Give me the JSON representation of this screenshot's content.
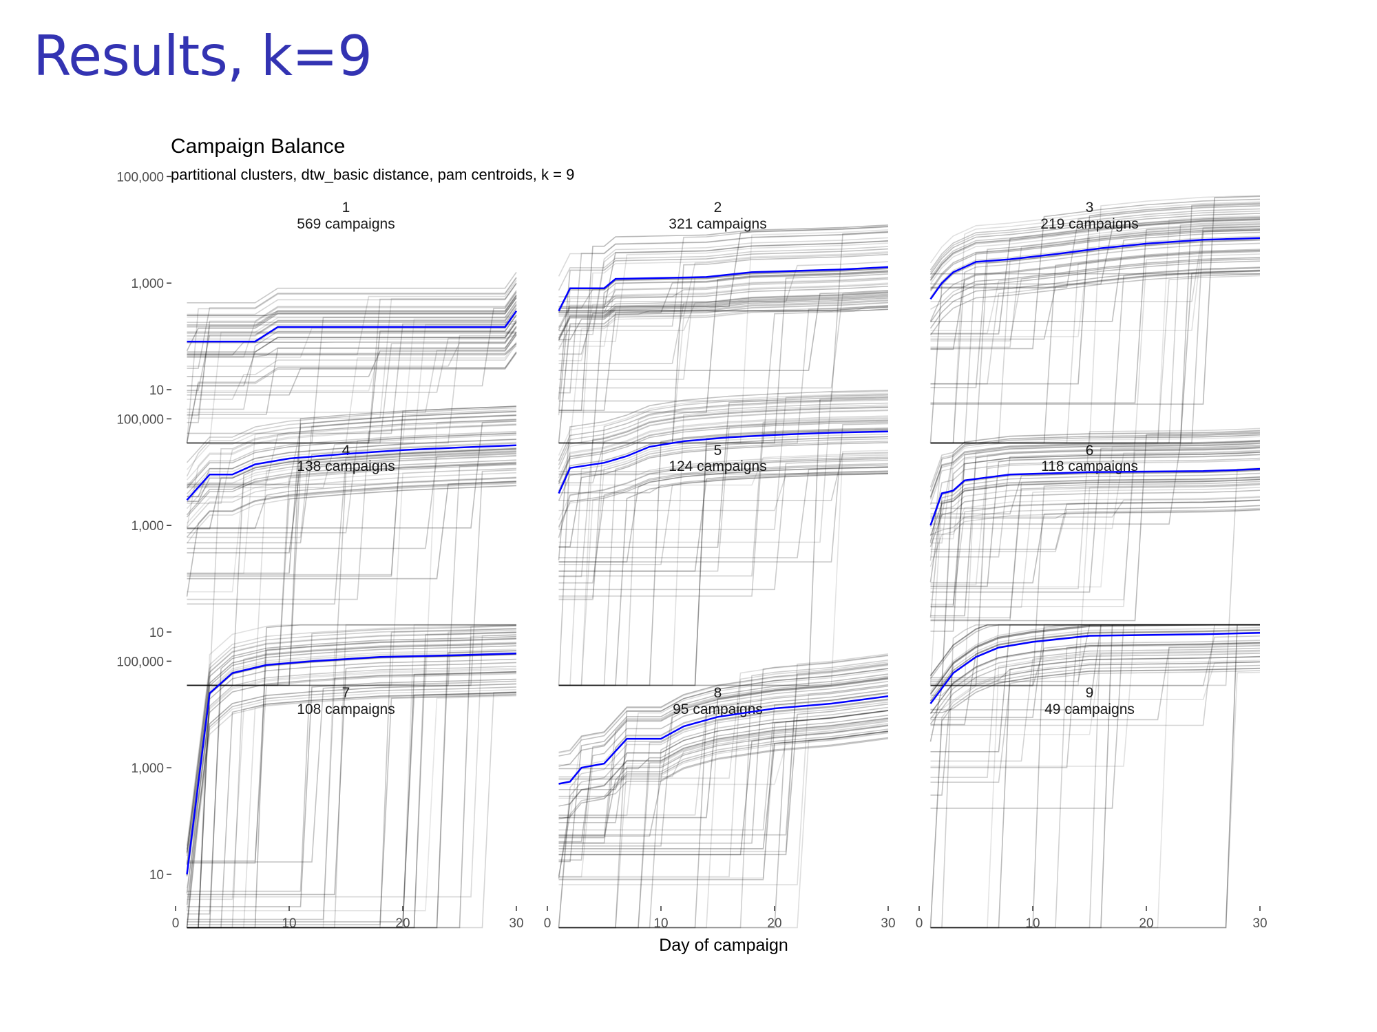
{
  "slide": {
    "title": "Results, k=9"
  },
  "colors": {
    "slide_title": "#3333b2",
    "centroid": "#0000ff",
    "series": "#000000"
  },
  "chart_data": {
    "type": "line",
    "title": "Campaign Balance",
    "subtitle": "partitional clusters, dtw_basic distance, pam centroids, k = 9",
    "xlabel": "Day of campaign",
    "ylabel": "",
    "y_scale": "log10",
    "ylim": [
      1,
      300000
    ],
    "xlim": [
      0,
      30
    ],
    "x_ticks": [
      0,
      10,
      20,
      30
    ],
    "x_tick_labels": [
      "0",
      "10",
      "20",
      "30"
    ],
    "y_ticks": [
      10,
      1000,
      100000
    ],
    "y_tick_labels": [
      "10",
      "1,000",
      "100,000"
    ],
    "grid": false,
    "legend": "none",
    "panels": [
      {
        "cluster": "1",
        "label": "569 campaigns",
        "centroid": [
          [
            1,
            80
          ],
          [
            7,
            80
          ],
          [
            9,
            150
          ],
          [
            29,
            150
          ],
          [
            30,
            300
          ]
        ]
      },
      {
        "cluster": "2",
        "label": "321 campaigns",
        "centroid": [
          [
            1,
            300
          ],
          [
            2,
            800
          ],
          [
            5,
            800
          ],
          [
            6,
            1200
          ],
          [
            14,
            1300
          ],
          [
            18,
            1600
          ],
          [
            26,
            1800
          ],
          [
            30,
            2000
          ]
        ]
      },
      {
        "cluster": "3",
        "label": "219 campaigns",
        "centroid": [
          [
            1,
            500
          ],
          [
            2,
            1000
          ],
          [
            3,
            1600
          ],
          [
            5,
            2500
          ],
          [
            8,
            2800
          ],
          [
            12,
            3500
          ],
          [
            16,
            4500
          ],
          [
            20,
            5500
          ],
          [
            25,
            6500
          ],
          [
            30,
            7000
          ]
        ]
      },
      {
        "cluster": "4",
        "label": "138 campaigns",
        "centroid": [
          [
            1,
            3000
          ],
          [
            3,
            9000
          ],
          [
            5,
            9000
          ],
          [
            7,
            14000
          ],
          [
            10,
            18000
          ],
          [
            15,
            22000
          ],
          [
            20,
            26000
          ],
          [
            25,
            29000
          ],
          [
            30,
            32000
          ]
        ]
      },
      {
        "cluster": "5",
        "label": "124 campaigns",
        "centroid": [
          [
            1,
            4000
          ],
          [
            2,
            12000
          ],
          [
            5,
            15000
          ],
          [
            7,
            20000
          ],
          [
            9,
            30000
          ],
          [
            12,
            38000
          ],
          [
            16,
            45000
          ],
          [
            20,
            50000
          ],
          [
            25,
            55000
          ],
          [
            30,
            58000
          ]
        ]
      },
      {
        "cluster": "6",
        "label": "118 campaigns",
        "centroid": [
          [
            1,
            1000
          ],
          [
            2,
            4000
          ],
          [
            3,
            4500
          ],
          [
            4,
            7000
          ],
          [
            8,
            9000
          ],
          [
            15,
            10000
          ],
          [
            25,
            10500
          ],
          [
            28,
            11000
          ],
          [
            30,
            11500
          ]
        ]
      },
      {
        "cluster": "7",
        "label": "108 campaigns",
        "centroid": [
          [
            1,
            10
          ],
          [
            2,
            500
          ],
          [
            3,
            25000
          ],
          [
            5,
            60000
          ],
          [
            8,
            85000
          ],
          [
            12,
            100000
          ],
          [
            18,
            120000
          ],
          [
            25,
            130000
          ],
          [
            30,
            140000
          ]
        ]
      },
      {
        "cluster": "8",
        "label": "95 campaigns",
        "centroid": [
          [
            1,
            500
          ],
          [
            2,
            550
          ],
          [
            3,
            1000
          ],
          [
            5,
            1200
          ],
          [
            7,
            3500
          ],
          [
            10,
            3500
          ],
          [
            12,
            6000
          ],
          [
            15,
            9000
          ],
          [
            20,
            13000
          ],
          [
            25,
            16000
          ],
          [
            30,
            22000
          ]
        ]
      },
      {
        "cluster": "9",
        "label": "49 campaigns",
        "centroid": [
          [
            1,
            16000
          ],
          [
            3,
            60000
          ],
          [
            5,
            120000
          ],
          [
            7,
            180000
          ],
          [
            10,
            230000
          ],
          [
            15,
            300000
          ],
          [
            20,
            310000
          ],
          [
            25,
            320000
          ],
          [
            30,
            340000
          ]
        ]
      }
    ]
  }
}
